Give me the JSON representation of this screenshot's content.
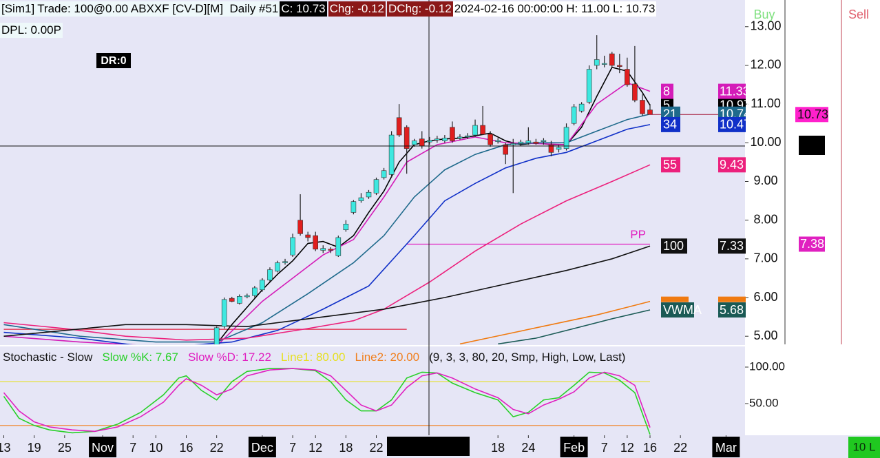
{
  "header": {
    "account": "[Sim1]",
    "info": "Trade: 100@0.00 ABXXF [CV-D][M]  Daily #51",
    "close": "C: 10.73",
    "chg": "Chg: -0.12",
    "dchg": "DChg: -0.12",
    "time": "2024-02-16 00:00:00 H: 11.00 L: 10.73",
    "dpl": "DPL: 0.00P",
    "dr": "DR:0"
  },
  "buttons": {
    "buy": "Buy",
    "sell": "Sell",
    "qty": "10 L"
  },
  "chart_data": [
    {
      "type": "candlestick",
      "up_color": "#3ee8e0",
      "down_color": "#e01e1e",
      "xlim": [
        -0.5,
        97.5
      ],
      "xticks": [
        {
          "value": 0,
          "label": "13"
        },
        {
          "value": 4,
          "label": "19"
        },
        {
          "value": 8,
          "label": "25"
        },
        {
          "value": 13,
          "label": "Nov"
        },
        {
          "value": 17,
          "label": "7"
        },
        {
          "value": 20,
          "label": "10"
        },
        {
          "value": 24,
          "label": "16"
        },
        {
          "value": 28,
          "label": "22"
        },
        {
          "value": 34,
          "label": "Dec"
        },
        {
          "value": 38,
          "label": "7"
        },
        {
          "value": 41,
          "label": "12"
        },
        {
          "value": 45,
          "label": "18"
        },
        {
          "value": 49,
          "label": "22"
        },
        {
          "value": 65,
          "label": "18"
        },
        {
          "value": 69,
          "label": "24"
        },
        {
          "value": 75,
          "label": "Feb"
        },
        {
          "value": 79,
          "label": "7"
        },
        {
          "value": 82,
          "label": "12"
        },
        {
          "value": 85,
          "label": "16"
        },
        {
          "value": 89,
          "label": "22"
        },
        {
          "value": 95,
          "label": "Mar"
        }
      ],
      "ylim": [
        4.79,
        13.69
      ],
      "yticks": [
        {
          "value": 5,
          "label": "5.00"
        },
        {
          "value": 6,
          "label": "6.00"
        },
        {
          "value": 7,
          "label": "7.00"
        },
        {
          "value": 8,
          "label": "8.00"
        },
        {
          "value": 9,
          "label": "9.00"
        },
        {
          "value": 10,
          "label": "10.00"
        },
        {
          "value": 11,
          "label": "11.00"
        },
        {
          "value": 12,
          "label": "12.00"
        },
        {
          "value": 13,
          "label": "13.00"
        }
      ],
      "x": [
        28,
        29,
        30,
        31,
        32,
        33,
        34,
        35,
        36,
        37,
        38,
        39,
        40,
        41,
        42,
        43,
        44,
        45,
        46,
        47,
        48,
        49,
        50,
        51,
        52,
        53,
        54,
        55,
        56,
        57,
        58,
        59,
        60,
        61,
        62,
        63,
        64,
        65,
        66,
        67,
        68,
        69,
        70,
        71,
        72,
        73,
        74,
        75,
        76,
        77,
        78,
        79,
        80,
        81,
        82,
        83,
        84,
        85
      ],
      "open": [
        4.75,
        5.25,
        5.98,
        5.85,
        6.02,
        6.05,
        6.2,
        6.45,
        6.68,
        6.9,
        7.1,
        8.0,
        7.62,
        7.6,
        7.22,
        7.25,
        7.08,
        7.75,
        8.2,
        8.5,
        8.6,
        8.7,
        9.1,
        9.18,
        10.65,
        10.4,
        9.95,
        10.1,
        10.02,
        10.08,
        10.05,
        10.4,
        10.12,
        10.16,
        10.2,
        10.45,
        10.22,
        10.03,
        9.95,
        9.95,
        9.98,
        10.0,
        10.02,
        10.03,
        9.95,
        9.83,
        9.85,
        10.5,
        10.82,
        11.05,
        12.0,
        12.03,
        12.3,
        12.0,
        11.9,
        11.52,
        11.1,
        10.85
      ],
      "high": [
        5.25,
        6.0,
        6.02,
        6.08,
        6.1,
        6.3,
        6.5,
        6.78,
        6.95,
        7.0,
        7.65,
        8.67,
        7.7,
        7.7,
        7.35,
        7.3,
        7.6,
        8.0,
        8.52,
        8.7,
        8.78,
        9.1,
        9.35,
        10.3,
        11.0,
        10.45,
        10.1,
        10.3,
        10.15,
        10.18,
        10.2,
        10.55,
        10.22,
        10.25,
        10.6,
        10.95,
        10.3,
        10.12,
        10.0,
        10.1,
        10.08,
        10.4,
        10.1,
        10.12,
        10.05,
        9.95,
        10.5,
        11.0,
        11.05,
        12.0,
        12.78,
        12.25,
        12.35,
        12.3,
        12.2,
        12.5,
        11.25,
        11.0
      ],
      "low": [
        4.7,
        5.2,
        5.88,
        5.82,
        5.98,
        6.0,
        6.15,
        6.4,
        6.65,
        6.85,
        7.05,
        7.6,
        7.45,
        7.2,
        7.15,
        7.15,
        7.05,
        7.7,
        8.15,
        8.45,
        8.55,
        8.65,
        9.05,
        9.1,
        10.15,
        9.2,
        9.9,
        9.85,
        9.95,
        10.0,
        10.0,
        10.0,
        10.08,
        10.1,
        10.15,
        10.2,
        9.9,
        9.98,
        9.45,
        8.7,
        9.92,
        9.95,
        9.95,
        9.95,
        9.65,
        9.75,
        9.8,
        10.45,
        10.78,
        11.0,
        11.9,
        11.95,
        11.95,
        11.8,
        11.45,
        11.05,
        10.7,
        10.73
      ],
      "close": [
        5.22,
        5.95,
        5.9,
        6.03,
        6.05,
        6.25,
        6.45,
        6.72,
        6.9,
        6.93,
        7.55,
        7.65,
        7.55,
        7.25,
        7.27,
        7.22,
        7.55,
        7.9,
        8.48,
        8.58,
        8.72,
        9.05,
        9.28,
        10.2,
        10.2,
        9.85,
        10.05,
        9.92,
        10.06,
        10.1,
        10.12,
        10.05,
        10.15,
        10.18,
        10.45,
        10.22,
        9.95,
        10.06,
        9.7,
        9.98,
        10.02,
        10.05,
        9.98,
        10.06,
        9.75,
        9.88,
        10.4,
        10.93,
        11.0,
        11.9,
        12.15,
        12.05,
        12.0,
        11.97,
        11.5,
        11.1,
        10.75,
        10.73
      ],
      "series": [
        {
          "name": "5",
          "color": "#000000",
          "x": [
            28,
            30,
            32,
            34,
            36,
            38,
            40,
            42,
            44,
            46,
            48,
            50,
            52,
            54,
            56,
            58,
            60,
            62,
            64,
            66,
            68,
            70,
            72,
            74,
            76,
            78,
            80,
            82,
            84,
            85
          ],
          "values": [
            4.8,
            5.3,
            5.75,
            6.2,
            6.6,
            6.95,
            7.4,
            7.45,
            7.3,
            7.6,
            8.2,
            8.75,
            9.5,
            9.95,
            10.05,
            10.1,
            10.12,
            10.18,
            10.25,
            10.05,
            9.95,
            10.0,
            9.95,
            9.95,
            10.4,
            11.2,
            11.95,
            11.85,
            11.3,
            10.97
          ]
        },
        {
          "name": "8",
          "color": "#d41cb8",
          "x": [
            0,
            10,
            20,
            28,
            34,
            38,
            42,
            46,
            50,
            53,
            57,
            62,
            66,
            70,
            74,
            78,
            82,
            85
          ],
          "values": [
            5.0,
            4.85,
            4.75,
            4.75,
            5.9,
            6.5,
            7.1,
            7.5,
            8.6,
            9.5,
            9.95,
            10.15,
            10.0,
            9.98,
            9.95,
            11.0,
            11.55,
            11.33
          ]
        },
        {
          "name": "21",
          "color": "#1f6a8c",
          "x": [
            0,
            10,
            20,
            28,
            34,
            40,
            46,
            50,
            54,
            58,
            62,
            66,
            70,
            74,
            78,
            82,
            85
          ],
          "values": [
            5.3,
            5.0,
            4.85,
            4.85,
            5.35,
            6.1,
            6.9,
            7.6,
            8.6,
            9.3,
            9.7,
            9.95,
            10.0,
            10.0,
            10.3,
            10.6,
            10.74
          ]
        },
        {
          "name": "34",
          "color": "#1030c8",
          "x": [
            0,
            10,
            20,
            30,
            36,
            42,
            48,
            54,
            58,
            62,
            66,
            70,
            74,
            78,
            82,
            85
          ],
          "values": [
            5.1,
            4.95,
            4.7,
            4.85,
            5.15,
            5.7,
            6.3,
            7.6,
            8.5,
            8.95,
            9.35,
            9.6,
            9.75,
            10.05,
            10.35,
            10.47
          ]
        },
        {
          "name": "55",
          "color": "#ec207c",
          "x": [
            0,
            8,
            16,
            24,
            32,
            40,
            46,
            50,
            56,
            62,
            68,
            74,
            80,
            85
          ],
          "values": [
            5.35,
            5.2,
            5.0,
            4.9,
            4.95,
            5.2,
            5.4,
            5.7,
            6.4,
            7.2,
            7.9,
            8.5,
            9.0,
            9.43
          ]
        },
        {
          "name": "100",
          "color": "#111111",
          "x": [
            0,
            8,
            16,
            24,
            32,
            40,
            50,
            58,
            66,
            74,
            80,
            85
          ],
          "values": [
            5.0,
            5.15,
            5.3,
            5.3,
            5.25,
            5.45,
            5.7,
            6.0,
            6.35,
            6.7,
            7.0,
            7.33
          ]
        },
        {
          "color": "#f07a10",
          "x": [
            60,
            66,
            72,
            78,
            82,
            85
          ],
          "values": [
            4.8,
            5.05,
            5.3,
            5.55,
            5.75,
            5.9
          ]
        },
        {
          "name": "VWMA",
          "color": "#1a5a55",
          "x": [
            65,
            70,
            75,
            80,
            85
          ],
          "values": [
            4.8,
            4.95,
            5.2,
            5.45,
            5.68
          ]
        }
      ],
      "hlines": [
        {
          "label": "PP",
          "value": 7.38,
          "color": "#e020c0",
          "x": [
            53,
            85
          ]
        },
        {
          "value": 5.18,
          "color": "#e02040",
          "x": [
            0,
            53
          ]
        }
      ]
    },
    {
      "type": "line",
      "legend": [
        "Stochastic - Slow",
        "Slow %K: 7.67",
        "Slow %D: 17.22",
        "Line1: 80.00",
        "Line2: 20.00",
        "(9, 3, 3, 80, 20, Smp, High, Low, Last)"
      ],
      "xlim": [
        -0.5,
        97.5
      ],
      "ylim": [
        6.6,
        126.4
      ],
      "yticks": [
        {
          "value": 100,
          "label": "100.00"
        },
        {
          "value": 50,
          "label": "50.00"
        }
      ],
      "x": [
        0,
        2,
        4,
        6,
        9,
        12,
        15,
        18,
        21,
        23,
        24,
        26,
        28,
        30,
        32,
        35,
        38,
        41,
        43,
        45,
        47,
        49,
        51,
        53,
        55,
        57,
        59,
        62,
        65,
        67,
        69,
        71,
        73,
        75,
        77,
        79,
        81,
        83,
        85
      ],
      "series": [
        {
          "color": "#28d028",
          "values": [
            60,
            30,
            20,
            14,
            10,
            12,
            22,
            38,
            62,
            85,
            88,
            68,
            55,
            80,
            94,
            98,
            98,
            95,
            80,
            55,
            40,
            40,
            55,
            85,
            93,
            92,
            78,
            65,
            55,
            32,
            38,
            55,
            58,
            75,
            93,
            92,
            82,
            65,
            7.67
          ]
        },
        {
          "color": "#e020c0",
          "values": [
            65,
            40,
            25,
            18,
            14,
            12,
            18,
            32,
            52,
            75,
            84,
            75,
            62,
            70,
            88,
            96,
            98,
            96,
            88,
            68,
            48,
            40,
            48,
            72,
            88,
            92,
            85,
            70,
            58,
            42,
            36,
            48,
            56,
            66,
            85,
            93,
            88,
            75,
            17.22
          ]
        }
      ],
      "hlines": [
        {
          "value": 80,
          "color": "#e6e020",
          "x": [
            -0.5,
            85
          ]
        },
        {
          "value": 20,
          "color": "#f08020",
          "x": [
            -0.5,
            85
          ]
        }
      ]
    }
  ]
}
